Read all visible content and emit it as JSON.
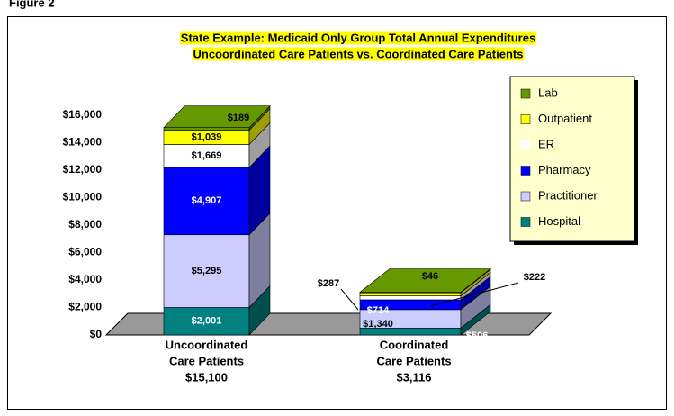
{
  "figure_label": "Figure 2",
  "chart_data": {
    "type": "bar3d_stacked",
    "title": [
      "State Example: Medicaid Only Group Total Annual Expenditures",
      "Uncoordinated Care Patients vs. Coordinated Care Patients"
    ],
    "categories": [
      [
        "Uncoordinated",
        "Care Patients"
      ],
      [
        "Coordinated",
        "Care Patients"
      ]
    ],
    "total_labels": [
      "$15,100",
      "$3,116"
    ],
    "ylim": [
      0,
      16000
    ],
    "yticks": [
      {
        "value": 0,
        "label": "$0"
      },
      {
        "value": 2000,
        "label": "$2,000"
      },
      {
        "value": 4000,
        "label": "$4,000"
      },
      {
        "value": 6000,
        "label": "$6,000"
      },
      {
        "value": 8000,
        "label": "$8,000"
      },
      {
        "value": 10000,
        "label": "$10,000"
      },
      {
        "value": 12000,
        "label": "$12,000"
      },
      {
        "value": 14000,
        "label": "$14,000"
      },
      {
        "value": 16000,
        "label": "$16,000"
      }
    ],
    "legend": "top-right",
    "series": [
      {
        "name": "Hospital",
        "color": "#008080",
        "values": [
          2001,
          506
        ],
        "value_labels": [
          "$2,001",
          "$506"
        ]
      },
      {
        "name": "Practitioner",
        "color": "#ccccff",
        "values": [
          5295,
          1340
        ],
        "value_labels": [
          "$5,295",
          "$1,340"
        ]
      },
      {
        "name": "Pharmacy",
        "color": "#0000ff",
        "values": [
          4907,
          714
        ],
        "value_labels": [
          "$4,907",
          "$714"
        ]
      },
      {
        "name": "ER",
        "color": "#ffffff",
        "values": [
          1669,
          287
        ],
        "value_labels": [
          "$1,669",
          "$287"
        ]
      },
      {
        "name": "Outpatient",
        "color": "#ffff00",
        "values": [
          1039,
          222
        ],
        "value_labels": [
          "$1,039",
          "$222"
        ]
      },
      {
        "name": "Lab",
        "color": "#669900",
        "values": [
          189,
          46
        ],
        "value_labels": [
          "$189",
          "$46"
        ]
      }
    ]
  }
}
